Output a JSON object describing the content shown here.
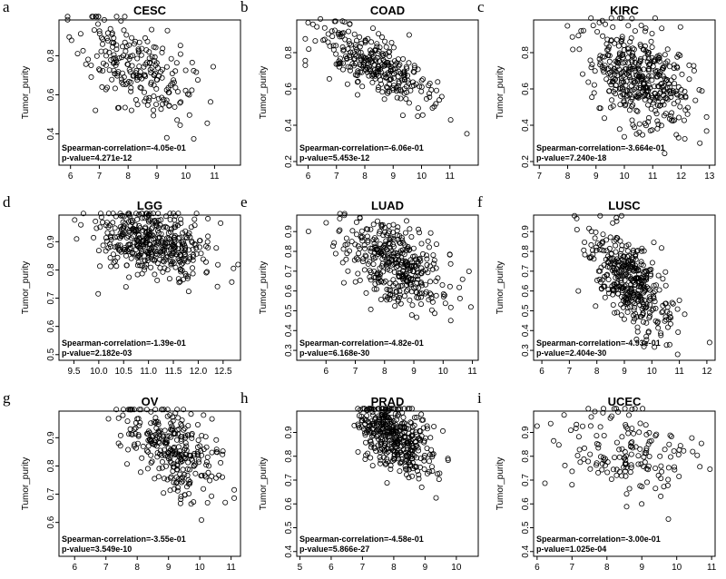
{
  "chart_data": [
    {
      "letter": "a",
      "title": "CESC",
      "type": "scatter",
      "ylabel": "Tumor_purity",
      "xlim": [
        5.6,
        11.9
      ],
      "ylim": [
        0.24,
        1.02
      ],
      "xticks": [
        6,
        7,
        8,
        9,
        10,
        11
      ],
      "yticks": [
        0.4,
        0.6,
        0.8,
        1.0
      ],
      "ytick_labels": [
        "0.4",
        "0.6",
        "0.8",
        "1.0"
      ],
      "stat_correlation": "Spearman-correlation=-4.05e-01",
      "stat_pvalue": "p-value=4.271e-12",
      "seed": 11,
      "n": 230,
      "x_center": 8.2,
      "x_sd": 0.95,
      "x_range": [
        5.9,
        11.7
      ],
      "slope": -0.07,
      "y_at_center": 0.74,
      "y_sd": 0.11,
      "y_range": [
        0.27,
        1.0
      ]
    },
    {
      "letter": "b",
      "title": "COAD",
      "type": "scatter",
      "ylabel": "Tumor_purity",
      "xlim": [
        5.6,
        12.0
      ],
      "ylim": [
        0.18,
        1.02
      ],
      "xticks": [
        6,
        7,
        8,
        9,
        10,
        11
      ],
      "yticks": [
        0.2,
        0.4,
        0.6,
        0.8,
        1.0
      ],
      "ytick_labels": [
        "0.2",
        "0.4",
        "0.6",
        "0.8",
        "1.0"
      ],
      "stat_correlation": "Spearman-correlation=-6.06e-01",
      "stat_pvalue": "p-value=5.453e-12",
      "seed": 23,
      "n": 300,
      "x_center": 8.3,
      "x_sd": 1.0,
      "x_range": [
        5.9,
        11.6
      ],
      "slope": -0.075,
      "y_at_center": 0.73,
      "y_sd": 0.08,
      "y_range": [
        0.2,
        0.99
      ]
    },
    {
      "letter": "c",
      "title": "KIRC",
      "type": "scatter",
      "ylabel": "Tumor_purity",
      "xlim": [
        6.8,
        13.2
      ],
      "ylim": [
        0.18,
        1.02
      ],
      "xticks": [
        7,
        8,
        9,
        10,
        11,
        12,
        13
      ],
      "yticks": [
        0.2,
        0.4,
        0.6,
        0.8
      ],
      "ytick_labels": [
        "0.2",
        "0.4",
        "0.6",
        "0.8"
      ],
      "stat_correlation": "Spearman-correlation=-3.664e-01",
      "stat_pvalue": "p-value=7.240e-18",
      "seed": 37,
      "n": 420,
      "x_center": 10.6,
      "x_sd": 0.9,
      "x_range": [
        7.0,
        12.9
      ],
      "slope": -0.06,
      "y_at_center": 0.66,
      "y_sd": 0.13,
      "y_range": [
        0.2,
        0.99
      ]
    },
    {
      "letter": "d",
      "title": "LGG",
      "type": "scatter",
      "ylabel": "Tumor_purity",
      "xlim": [
        9.2,
        12.85
      ],
      "ylim": [
        0.48,
        1.02
      ],
      "xticks": [
        9.5,
        10.0,
        10.5,
        11.0,
        11.5,
        12.0,
        12.5
      ],
      "xtick_labels": [
        "9.5",
        "10.0",
        "10.5",
        "11.0",
        "11.5",
        "12.0",
        "12.5"
      ],
      "yticks": [
        0.5,
        0.6,
        0.7,
        0.8,
        0.9,
        1.0
      ],
      "ytick_labels": [
        "0.5",
        "0.6",
        "0.7",
        "0.8",
        "0.9",
        "1.0"
      ],
      "stat_correlation": "Spearman-correlation=-1.39e-01",
      "stat_pvalue": "p-value=2.182e-03",
      "seed": 41,
      "n": 420,
      "x_center": 11.1,
      "x_sd": 0.55,
      "x_range": [
        9.3,
        12.8
      ],
      "slope": -0.03,
      "y_at_center": 0.9,
      "y_sd": 0.065,
      "y_range": [
        0.52,
        1.0
      ]
    },
    {
      "letter": "e",
      "title": "LUAD",
      "type": "scatter",
      "ylabel": "Tumor_purity",
      "xlim": [
        5.0,
        11.2
      ],
      "ylim": [
        0.25,
        1.02
      ],
      "xticks": [
        6,
        7,
        8,
        9,
        10,
        11
      ],
      "yticks": [
        0.3,
        0.4,
        0.5,
        0.6,
        0.7,
        0.8,
        0.9,
        1.0
      ],
      "ytick_labels": [
        "0.3",
        "0.4",
        "0.5",
        "0.6",
        "0.7",
        "0.8",
        "0.9",
        "1.0"
      ],
      "stat_correlation": "Spearman-correlation=-4.82e-01",
      "stat_pvalue": "p-value=6.168e-30",
      "seed": 53,
      "n": 380,
      "x_center": 8.3,
      "x_sd": 0.85,
      "x_range": [
        5.3,
        10.95
      ],
      "slope": -0.07,
      "y_at_center": 0.74,
      "y_sd": 0.1,
      "y_range": [
        0.28,
        0.99
      ]
    },
    {
      "letter": "f",
      "title": "LUSC",
      "type": "scatter",
      "ylabel": "Tumor_purity",
      "xlim": [
        5.7,
        12.3
      ],
      "ylim": [
        0.25,
        1.02
      ],
      "xticks": [
        6,
        7,
        8,
        9,
        10,
        11,
        12
      ],
      "yticks": [
        0.3,
        0.4,
        0.5,
        0.6,
        0.7,
        0.8,
        0.9
      ],
      "ytick_labels": [
        "0.3",
        "0.4",
        "0.5",
        "0.6",
        "0.7",
        "0.8",
        "0.9"
      ],
      "stat_correlation": "Spearman-correlation=-4.93e-01",
      "stat_pvalue": "p-value=2.404e-30",
      "seed": 67,
      "n": 400,
      "x_center": 9.2,
      "x_sd": 0.75,
      "x_range": [
        6.0,
        12.1
      ],
      "slope": -0.1,
      "y_at_center": 0.65,
      "y_sd": 0.1,
      "y_range": [
        0.28,
        0.98
      ]
    },
    {
      "letter": "g",
      "title": "OV",
      "type": "scatter",
      "ylabel": "Tumor_purity",
      "xlim": [
        5.5,
        11.3
      ],
      "ylim": [
        0.48,
        1.02
      ],
      "xticks": [
        6,
        7,
        8,
        9,
        10,
        11
      ],
      "yticks": [
        0.6,
        0.7,
        0.8,
        0.9,
        1.0
      ],
      "ytick_labels": [
        "0.6",
        "0.7",
        "0.8",
        "0.9",
        "1.0"
      ],
      "stat_correlation": "Spearman-correlation=-3.55e-01",
      "stat_pvalue": "p-value=3.549e-10",
      "seed": 79,
      "n": 300,
      "x_center": 9.1,
      "x_sd": 0.8,
      "x_range": [
        5.7,
        11.1
      ],
      "slope": -0.05,
      "y_at_center": 0.86,
      "y_sd": 0.075,
      "y_range": [
        0.5,
        1.0
      ]
    },
    {
      "letter": "h",
      "title": "PRAD",
      "type": "scatter",
      "ylabel": "Tumor_purity",
      "xlim": [
        4.9,
        10.7
      ],
      "ylim": [
        0.38,
        1.02
      ],
      "xticks": [
        5,
        6,
        7,
        8,
        9,
        10
      ],
      "yticks": [
        0.4,
        0.5,
        0.6,
        0.7,
        0.8,
        0.9,
        1.0
      ],
      "ytick_labels": [
        "0.4",
        "0.5",
        "0.6",
        "0.7",
        "0.8",
        "0.9",
        "1.0"
      ],
      "stat_correlation": "Spearman-correlation=-4.58e-01",
      "stat_pvalue": "p-value=5.866e-27",
      "seed": 83,
      "n": 420,
      "x_center": 8.0,
      "x_sd": 0.6,
      "x_range": [
        5.0,
        10.6
      ],
      "slope": -0.06,
      "y_at_center": 0.89,
      "y_sd": 0.075,
      "y_range": [
        0.42,
        1.0
      ]
    },
    {
      "letter": "i",
      "title": "UCEC",
      "type": "scatter",
      "ylabel": "Tumor_purity",
      "xlim": [
        5.9,
        11.1
      ],
      "ylim": [
        0.38,
        1.02
      ],
      "xticks": [
        6,
        7,
        8,
        9,
        10,
        11
      ],
      "yticks": [
        0.4,
        0.5,
        0.6,
        0.7,
        0.8,
        0.9,
        1.0
      ],
      "ytick_labels": [
        "0.4",
        "0.5",
        "0.6",
        "0.7",
        "0.8",
        "0.9",
        "1.0"
      ],
      "stat_correlation": "Spearman-correlation=-3.00e-01",
      "stat_pvalue": "p-value=1.025e-04",
      "seed": 97,
      "n": 160,
      "x_center": 8.5,
      "x_sd": 1.0,
      "x_range": [
        6.0,
        11.0
      ],
      "slope": -0.04,
      "y_at_center": 0.82,
      "y_sd": 0.1,
      "y_range": [
        0.42,
        1.0
      ]
    }
  ]
}
